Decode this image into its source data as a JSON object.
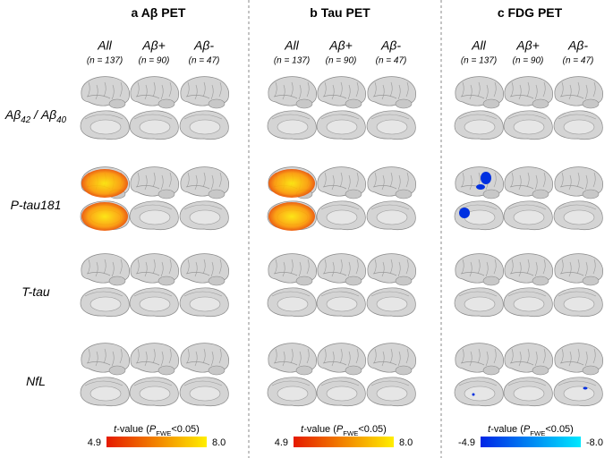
{
  "panels": [
    {
      "letter": "a",
      "title": "Aβ PET",
      "columns": [
        {
          "name": "All",
          "n": "(n = 137)"
        },
        {
          "name": "Aβ+",
          "n": "(n = 90)"
        },
        {
          "name": "Aβ-",
          "n": "(n = 47)"
        }
      ],
      "colorbar": {
        "label": [
          {
            "text": "t",
            "italic": true
          },
          {
            "text": "-value ("
          },
          {
            "text": "P",
            "italic": true
          },
          {
            "text": "FWE",
            "sub": true
          },
          {
            "text": "<0.05)"
          }
        ],
        "min": "4.9",
        "max": "8.0",
        "colors": [
          "#e51a00",
          "#ffee00"
        ]
      }
    },
    {
      "letter": "b",
      "title": "Tau PET",
      "columns": [
        {
          "name": "All",
          "n": "(n = 137)"
        },
        {
          "name": "Aβ+",
          "n": "(n = 90)"
        },
        {
          "name": "Aβ-",
          "n": "(n = 47)"
        }
      ],
      "colorbar": {
        "label": [
          {
            "text": "t",
            "italic": true
          },
          {
            "text": "-value ("
          },
          {
            "text": "P",
            "italic": true
          },
          {
            "text": "FWE",
            "sub": true
          },
          {
            "text": "<0.05)"
          }
        ],
        "min": "4.9",
        "max": "8.0",
        "colors": [
          "#e51a00",
          "#ffee00"
        ]
      }
    },
    {
      "letter": "c",
      "title": "FDG PET",
      "columns": [
        {
          "name": "All",
          "n": "(n = 137)"
        },
        {
          "name": "Aβ+",
          "n": "(n = 90)"
        },
        {
          "name": "Aβ-",
          "n": "(n = 47)"
        }
      ],
      "colorbar": {
        "label": [
          {
            "text": "t",
            "italic": true
          },
          {
            "text": "-value ("
          },
          {
            "text": "P",
            "italic": true
          },
          {
            "text": "FWE",
            "sub": true
          },
          {
            "text": "<0.05)"
          }
        ],
        "min": "-4.9",
        "max": "-8.0",
        "colors": [
          "#0025e6",
          "#00e8ff"
        ]
      }
    }
  ],
  "rows": [
    {
      "label": [
        {
          "text": "Aβ"
        },
        {
          "text": "42",
          "sub": true
        },
        {
          "text": " / Aβ"
        },
        {
          "text": "40",
          "sub": true
        }
      ]
    },
    {
      "label": [
        {
          "text": "P-tau181"
        }
      ]
    },
    {
      "label": [
        {
          "text": "T-tau"
        }
      ]
    },
    {
      "label": [
        {
          "text": "NfL"
        }
      ]
    }
  ]
}
